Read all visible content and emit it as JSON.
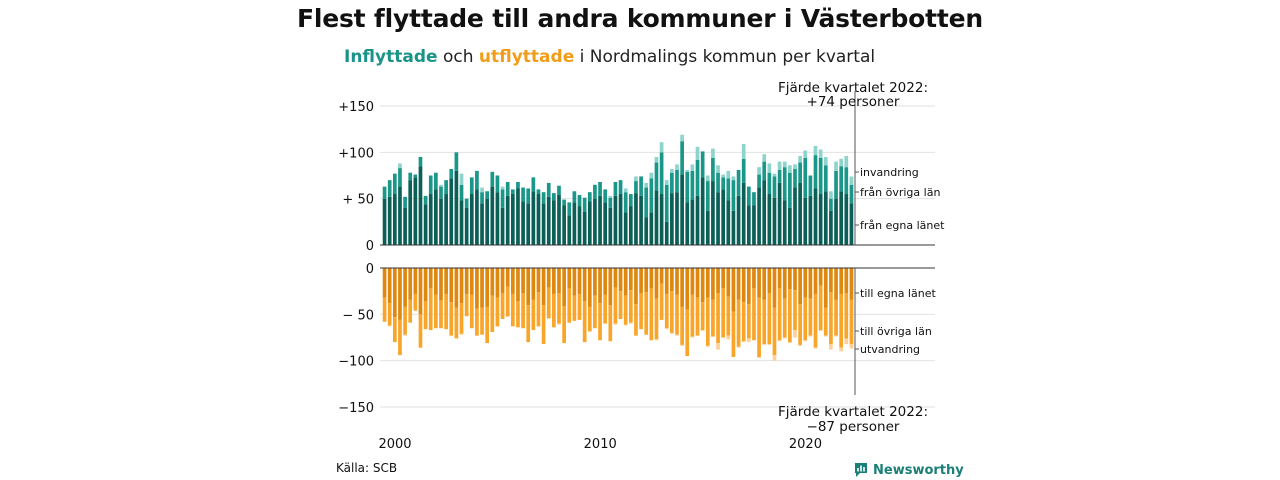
{
  "title": "Flest flyttade till andra kommuner i Västerbotten",
  "subtitle": {
    "in_word": "Inflyttade",
    "and": "och",
    "out_word": "utflyttade",
    "rest": "i Nordmalings kommun per kvartal"
  },
  "source": "Källa: SCB",
  "brand": "Newsworthy",
  "colors": {
    "in_egna": "#0b5f56",
    "in_ovriga": "#1b978a",
    "in_invandring": "#8ed3cc",
    "out_egna": "#de8810",
    "out_ovriga": "#f8a52a",
    "out_utvandring": "#fcd199"
  },
  "chart_data": {
    "type": "bar",
    "stacked": true,
    "x_start": "2000 Q1",
    "x_end": "2022 Q4",
    "x_ticks": [
      "2000",
      "2010",
      "2020"
    ],
    "inflow": {
      "y_ticks": [
        "+150",
        "+100",
        "+ 50",
        "0"
      ],
      "ylim": [
        0,
        150
      ],
      "last_label_line1": "Fjärde kvartalet 2022:",
      "last_label_line2": "+74 personer",
      "series": [
        {
          "name": "från egna länet",
          "values": [
            50,
            52,
            55,
            63,
            40,
            70,
            73,
            85,
            44,
            55,
            60,
            50,
            55,
            72,
            80,
            48,
            40,
            55,
            60,
            45,
            50,
            63,
            57,
            40,
            53,
            55,
            61,
            47,
            45,
            58,
            55,
            45,
            52,
            48,
            54,
            43,
            32,
            46,
            42,
            36,
            47,
            50,
            53,
            46,
            40,
            53,
            55,
            35,
            42,
            56,
            53,
            30,
            35,
            59,
            55,
            25,
            56,
            57,
            76,
            46,
            49,
            53,
            73,
            37,
            69,
            57,
            60,
            48,
            37,
            53,
            67,
            43,
            43,
            62,
            70,
            55,
            51,
            67,
            48,
            40,
            62,
            67,
            51,
            53,
            61,
            55,
            58,
            37,
            50,
            58,
            55,
            45
          ]
        },
        {
          "name": "från övriga län",
          "values": [
            13,
            18,
            22,
            20,
            12,
            8,
            3,
            10,
            9,
            20,
            18,
            13,
            15,
            10,
            20,
            17,
            10,
            18,
            20,
            12,
            8,
            16,
            18,
            20,
            15,
            5,
            7,
            15,
            16,
            15,
            5,
            12,
            15,
            8,
            10,
            6,
            14,
            12,
            12,
            15,
            10,
            15,
            15,
            14,
            11,
            15,
            15,
            22,
            13,
            13,
            21,
            32,
            37,
            30,
            45,
            40,
            22,
            24,
            36,
            33,
            31,
            39,
            28,
            32,
            25,
            21,
            13,
            24,
            33,
            28,
            26,
            20,
            14,
            14,
            20,
            23,
            23,
            14,
            36,
            38,
            20,
            22,
            43,
            22,
            36,
            39,
            28,
            13,
            30,
            27,
            29,
            20
          ]
        },
        {
          "name": "invandring",
          "values": [
            0,
            0,
            0,
            5,
            0,
            0,
            0,
            0,
            0,
            0,
            0,
            2,
            0,
            0,
            0,
            12,
            0,
            0,
            0,
            5,
            0,
            0,
            0,
            3,
            0,
            0,
            0,
            0,
            0,
            0,
            0,
            0,
            0,
            0,
            0,
            0,
            0,
            0,
            0,
            0,
            0,
            0,
            0,
            0,
            2,
            0,
            0,
            4,
            0,
            5,
            0,
            5,
            6,
            6,
            11,
            5,
            4,
            6,
            7,
            2,
            7,
            14,
            0,
            6,
            10,
            8,
            3,
            8,
            4,
            0,
            16,
            0,
            0,
            8,
            8,
            10,
            3,
            9,
            6,
            8,
            5,
            7,
            8,
            0,
            10,
            9,
            9,
            8,
            10,
            8,
            12,
            9
          ]
        }
      ]
    },
    "outflow": {
      "y_ticks": [
        "0",
        "− 50",
        "−100",
        "−150"
      ],
      "ylim": [
        -150,
        0
      ],
      "last_label_line1": "Fjärde kvartalet 2022:",
      "last_label_line2": "−87 personer",
      "series": [
        {
          "name": "till egna länet",
          "values": [
            -32,
            -38,
            -53,
            -56,
            -42,
            -34,
            -28,
            -50,
            -36,
            -22,
            -29,
            -35,
            -28,
            -37,
            -43,
            -38,
            -28,
            -29,
            -44,
            -43,
            -42,
            -30,
            -32,
            -27,
            -20,
            -28,
            -36,
            -27,
            -40,
            -34,
            -26,
            -40,
            -21,
            -28,
            -27,
            -41,
            -22,
            -30,
            -28,
            -36,
            -42,
            -30,
            -38,
            -29,
            -40,
            -21,
            -25,
            -30,
            -24,
            -39,
            -27,
            -26,
            -22,
            -33,
            -17,
            -28,
            -25,
            -29,
            -42,
            -45,
            -29,
            -32,
            -37,
            -32,
            -34,
            -27,
            -22,
            -31,
            -47,
            -34,
            -37,
            -39,
            -22,
            -32,
            -34,
            -27,
            -43,
            -22,
            -33,
            -23,
            -24,
            -39,
            -32,
            -33,
            -28,
            -19,
            -43,
            -26,
            -34,
            -28,
            -27,
            -34
          ]
        },
        {
          "name": "till övriga län",
          "values": [
            -26,
            -24,
            -27,
            -38,
            -30,
            -25,
            -18,
            -36,
            -30,
            -45,
            -36,
            -30,
            -38,
            -36,
            -33,
            -33,
            -24,
            -36,
            -29,
            -29,
            -39,
            -39,
            -31,
            -28,
            -32,
            -35,
            -28,
            -38,
            -40,
            -33,
            -37,
            -42,
            -33,
            -36,
            -33,
            -40,
            -37,
            -27,
            -28,
            -44,
            -26,
            -35,
            -40,
            -31,
            -39,
            -39,
            -30,
            -31,
            -35,
            -34,
            -39,
            -46,
            -56,
            -44,
            -39,
            -37,
            -45,
            -43,
            -41,
            -50,
            -45,
            -41,
            -30,
            -52,
            -40,
            -54,
            -53,
            -42,
            -49,
            -51,
            -42,
            -37,
            -56,
            -64,
            -48,
            -55,
            -51,
            -56,
            -42,
            -57,
            -43,
            -44,
            -46,
            -40,
            -58,
            -48,
            -30,
            -56,
            -39,
            -58,
            -49,
            -48
          ]
        },
        {
          "name": "utvandring",
          "values": [
            0,
            -1,
            0,
            0,
            -1,
            0,
            0,
            0,
            0,
            0,
            0,
            0,
            0,
            0,
            0,
            -1,
            0,
            0,
            0,
            0,
            0,
            0,
            0,
            0,
            -1,
            0,
            0,
            0,
            0,
            0,
            0,
            0,
            -1,
            0,
            -1,
            0,
            0,
            0,
            0,
            0,
            -1,
            0,
            0,
            0,
            0,
            -1,
            0,
            -1,
            -1,
            0,
            0,
            0,
            0,
            -1,
            0,
            -1,
            -1,
            -1,
            -1,
            0,
            -1,
            0,
            -1,
            -1,
            0,
            -7,
            0,
            -4,
            0,
            -1,
            -1,
            -4,
            0,
            -1,
            -1,
            -1,
            -6,
            -1,
            -1,
            -1,
            -8,
            -1,
            -1,
            -1,
            -1,
            -1,
            -1,
            -6,
            -1,
            -4,
            -6,
            -5
          ]
        }
      ]
    }
  }
}
